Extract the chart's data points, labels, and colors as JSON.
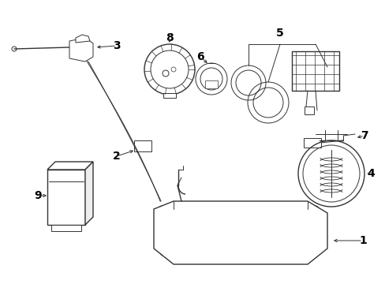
{
  "bg_color": "#ffffff",
  "line_color": "#333333",
  "text_color": "#000000",
  "lw_thin": 0.7,
  "lw_med": 1.0,
  "lw_thick": 1.3
}
